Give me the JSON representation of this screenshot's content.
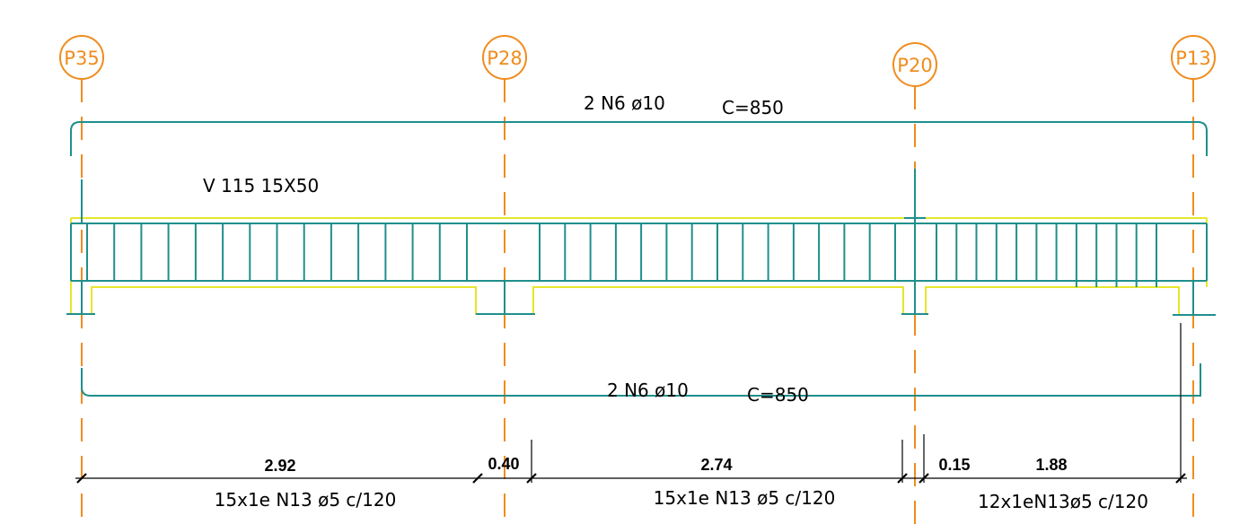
{
  "drawing": {
    "beam_label": "V 115 15X50",
    "top_rebar": {
      "label": "2 N6 ø10",
      "length": "C=850"
    },
    "bottom_rebar": {
      "label": "2 N6 ø10",
      "length": "C=850"
    },
    "pillars": [
      "P35",
      "P28",
      "P20",
      "P13"
    ],
    "dimensions": [
      "2.92",
      "0.40",
      "2.74",
      "0.15",
      "1.88"
    ],
    "stirrups": [
      "15x1e N13 ø5 c/120",
      "15x1e N13 ø5 c/120",
      "12x1eN13ø5 c/120"
    ],
    "colors": {
      "axis": "#f08c1e",
      "rebar": "#1f8f8c",
      "beam_outline": "#e6e62a",
      "dimension": "#000000"
    }
  }
}
